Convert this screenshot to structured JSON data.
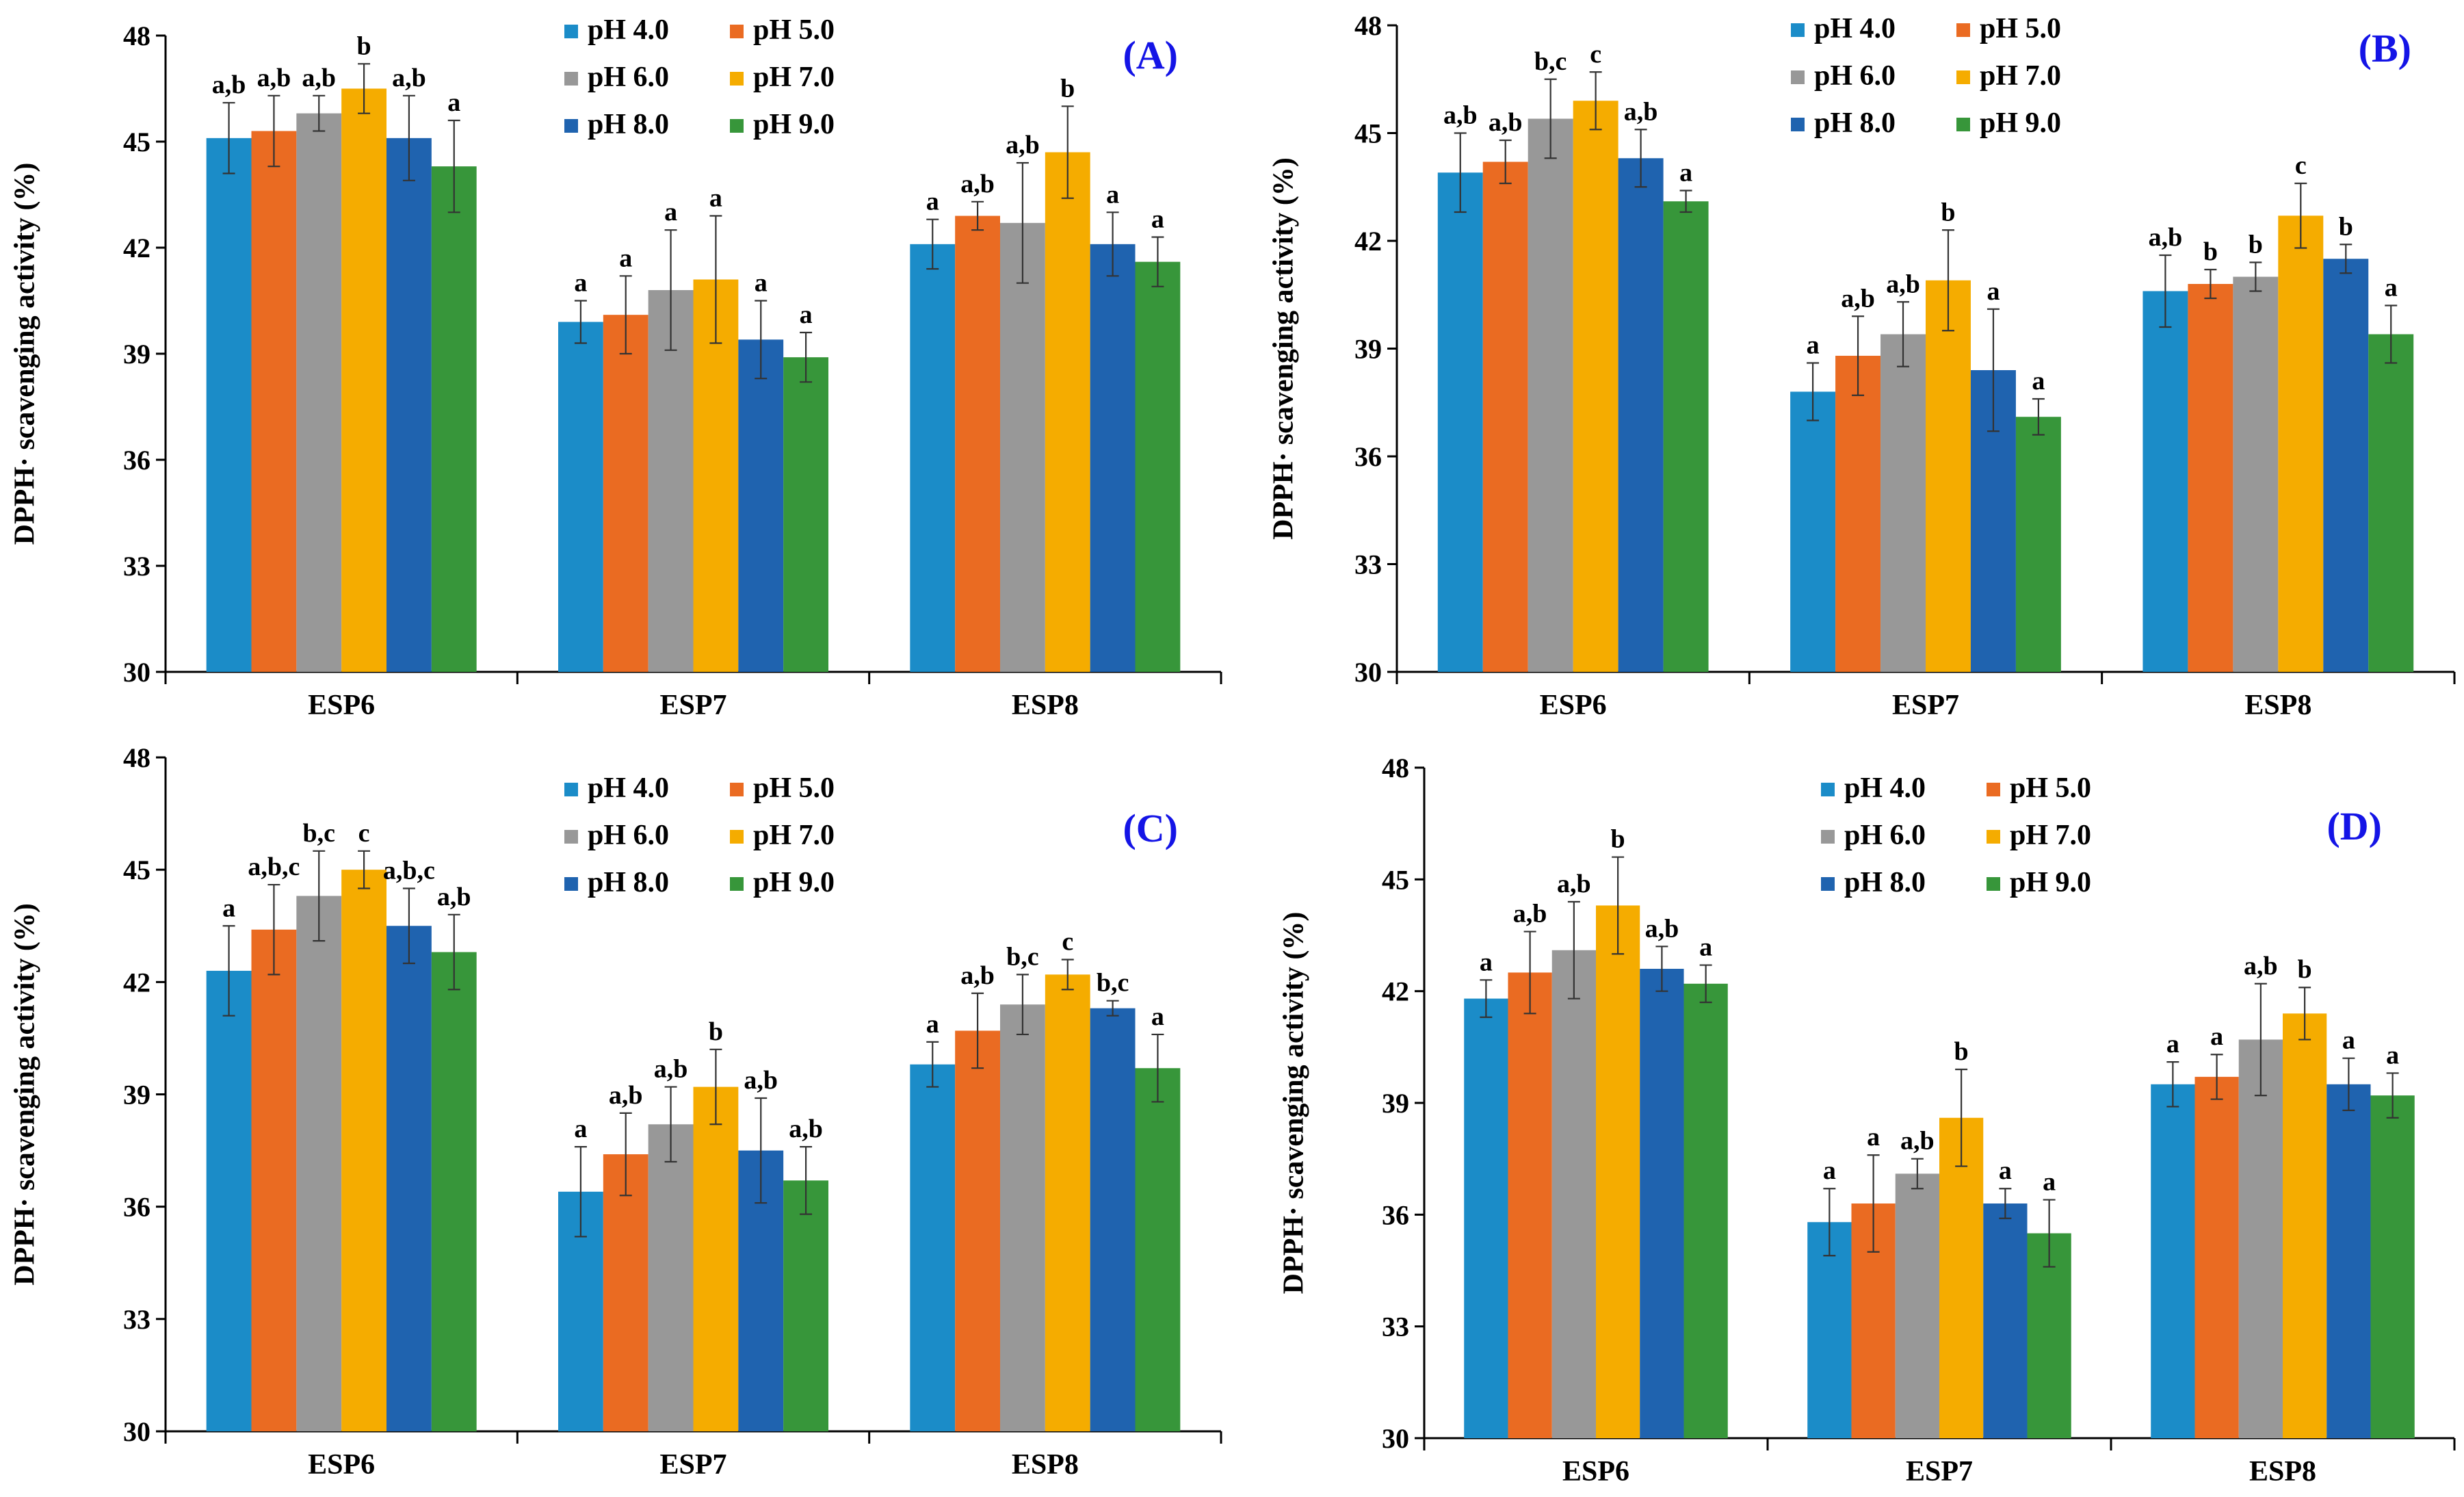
{
  "figure": {
    "legend_colors": {
      "pH 4.0": "#1B8CC8",
      "pH 5.0": "#EA6B22",
      "pH 6.0": "#989898",
      "pH 7.0": "#F5AC00",
      "pH 8.0": "#1F63AF",
      "pH 9.0": "#37963A"
    },
    "tag_color": "#1414E6"
  },
  "chart_data": [
    {
      "panel": "(A)",
      "type": "bar",
      "ylabel": "DPPH· scavenging activity (%)",
      "ylim": [
        30,
        48
      ],
      "yticks": [
        "30",
        "33",
        "36",
        "39",
        "42",
        "45",
        "48"
      ],
      "categories": [
        "ESP6",
        "ESP7",
        "ESP8"
      ],
      "series": [
        {
          "name": "pH 4.0",
          "values": [
            45.1,
            39.9,
            42.1
          ],
          "errors": [
            1.0,
            0.6,
            0.7
          ],
          "letters": [
            "a,b",
            "a",
            "a"
          ]
        },
        {
          "name": "pH 5.0",
          "values": [
            45.3,
            40.1,
            42.9
          ],
          "errors": [
            1.0,
            1.1,
            0.4
          ],
          "letters": [
            "a,b",
            "a",
            "a,b"
          ]
        },
        {
          "name": "pH 6.0",
          "values": [
            45.8,
            40.8,
            42.7
          ],
          "errors": [
            0.5,
            1.7,
            1.7
          ],
          "letters": [
            "a,b",
            "a",
            "a,b"
          ]
        },
        {
          "name": "pH 7.0",
          "values": [
            46.5,
            41.1,
            44.7
          ],
          "errors": [
            0.7,
            1.8,
            1.3
          ],
          "letters": [
            "b",
            "a",
            "b"
          ]
        },
        {
          "name": "pH 8.0",
          "values": [
            45.1,
            39.4,
            42.1
          ],
          "errors": [
            1.2,
            1.1,
            0.9
          ],
          "letters": [
            "a,b",
            "a",
            "a"
          ]
        },
        {
          "name": "pH 9.0",
          "values": [
            44.3,
            38.9,
            41.6
          ],
          "errors": [
            1.3,
            0.7,
            0.7
          ],
          "letters": [
            "a",
            "a",
            "a"
          ]
        }
      ]
    },
    {
      "panel": "(B)",
      "type": "bar",
      "ylabel": "DPPH· scavenging activity (%)",
      "ylim": [
        30,
        48
      ],
      "yticks": [
        "30",
        "33",
        "36",
        "39",
        "42",
        "45",
        "48"
      ],
      "categories": [
        "ESP6",
        "ESP7",
        "ESP8"
      ],
      "series": [
        {
          "name": "pH 4.0",
          "values": [
            43.9,
            37.8,
            40.6
          ],
          "errors": [
            1.1,
            0.8,
            1.0
          ],
          "letters": [
            "a,b",
            "a",
            "a,b"
          ]
        },
        {
          "name": "pH 5.0",
          "values": [
            44.2,
            38.8,
            40.8
          ],
          "errors": [
            0.6,
            1.1,
            0.4
          ],
          "letters": [
            "a,b",
            "a,b",
            "b"
          ]
        },
        {
          "name": "pH 6.0",
          "values": [
            45.4,
            39.4,
            41.0
          ],
          "errors": [
            1.1,
            0.9,
            0.4
          ],
          "letters": [
            "b,c",
            "a,b",
            "b"
          ]
        },
        {
          "name": "pH 7.0",
          "values": [
            45.9,
            40.9,
            42.7
          ],
          "errors": [
            0.8,
            1.4,
            0.9
          ],
          "letters": [
            "c",
            "b",
            "c"
          ]
        },
        {
          "name": "pH 8.0",
          "values": [
            44.3,
            38.4,
            41.5
          ],
          "errors": [
            0.8,
            1.7,
            0.4
          ],
          "letters": [
            "a,b",
            "a",
            "b"
          ]
        },
        {
          "name": "pH 9.0",
          "values": [
            43.1,
            37.1,
            39.4
          ],
          "errors": [
            0.3,
            0.5,
            0.8
          ],
          "letters": [
            "a",
            "a",
            "a"
          ]
        }
      ]
    },
    {
      "panel": "(C)",
      "type": "bar",
      "ylabel": "DPPH· scavenging activity (%)",
      "ylim": [
        30,
        48
      ],
      "yticks": [
        "30",
        "33",
        "36",
        "39",
        "42",
        "45",
        "48"
      ],
      "categories": [
        "ESP6",
        "ESP7",
        "ESP8"
      ],
      "series": [
        {
          "name": "pH 4.0",
          "values": [
            42.3,
            36.4,
            39.8
          ],
          "errors": [
            1.2,
            1.2,
            0.6
          ],
          "letters": [
            "a",
            "a",
            "a"
          ]
        },
        {
          "name": "pH 5.0",
          "values": [
            43.4,
            37.4,
            40.7
          ],
          "errors": [
            1.2,
            1.1,
            1.0
          ],
          "letters": [
            "a,b,c",
            "a,b",
            "a,b"
          ]
        },
        {
          "name": "pH 6.0",
          "values": [
            44.3,
            38.2,
            41.4
          ],
          "errors": [
            1.2,
            1.0,
            0.8
          ],
          "letters": [
            "b,c",
            "a,b",
            "b,c"
          ]
        },
        {
          "name": "pH 7.0",
          "values": [
            45.0,
            39.2,
            42.2
          ],
          "errors": [
            0.5,
            1.0,
            0.4
          ],
          "letters": [
            "c",
            "b",
            "c"
          ]
        },
        {
          "name": "pH 8.0",
          "values": [
            43.5,
            37.5,
            41.3
          ],
          "errors": [
            1.0,
            1.4,
            0.2
          ],
          "letters": [
            "a,b,c",
            "a,b",
            "b,c"
          ]
        },
        {
          "name": "pH 9.0",
          "values": [
            42.8,
            36.7,
            39.7
          ],
          "errors": [
            1.0,
            0.9,
            0.9
          ],
          "letters": [
            "a,b",
            "a,b",
            "a"
          ]
        }
      ]
    },
    {
      "panel": "(D)",
      "type": "bar",
      "ylabel": "DPPH· scavenging activity (%)",
      "ylim": [
        30,
        48
      ],
      "yticks": [
        "30",
        "33",
        "36",
        "39",
        "42",
        "45",
        "48"
      ],
      "categories": [
        "ESP6",
        "ESP7",
        "ESP8"
      ],
      "series": [
        {
          "name": "pH 4.0",
          "values": [
            41.8,
            35.8,
            39.5
          ],
          "errors": [
            0.5,
            0.9,
            0.6
          ],
          "letters": [
            "a",
            "a",
            "a"
          ]
        },
        {
          "name": "pH 5.0",
          "values": [
            42.5,
            36.3,
            39.7
          ],
          "errors": [
            1.1,
            1.3,
            0.6
          ],
          "letters": [
            "a,b",
            "a",
            "a"
          ]
        },
        {
          "name": "pH 6.0",
          "values": [
            43.1,
            37.1,
            40.7
          ],
          "errors": [
            1.3,
            0.4,
            1.5
          ],
          "letters": [
            "a,b",
            "a,b",
            "a,b"
          ]
        },
        {
          "name": "pH 7.0",
          "values": [
            44.3,
            38.6,
            41.4
          ],
          "errors": [
            1.3,
            1.3,
            0.7
          ],
          "letters": [
            "b",
            "b",
            "b"
          ]
        },
        {
          "name": "pH 8.0",
          "values": [
            42.6,
            36.3,
            39.5
          ],
          "errors": [
            0.6,
            0.4,
            0.7
          ],
          "letters": [
            "a,b",
            "a",
            "a"
          ]
        },
        {
          "name": "pH 9.0",
          "values": [
            42.2,
            35.5,
            39.2
          ],
          "errors": [
            0.5,
            0.9,
            0.6
          ],
          "letters": [
            "a",
            "a",
            "a"
          ]
        }
      ]
    }
  ]
}
